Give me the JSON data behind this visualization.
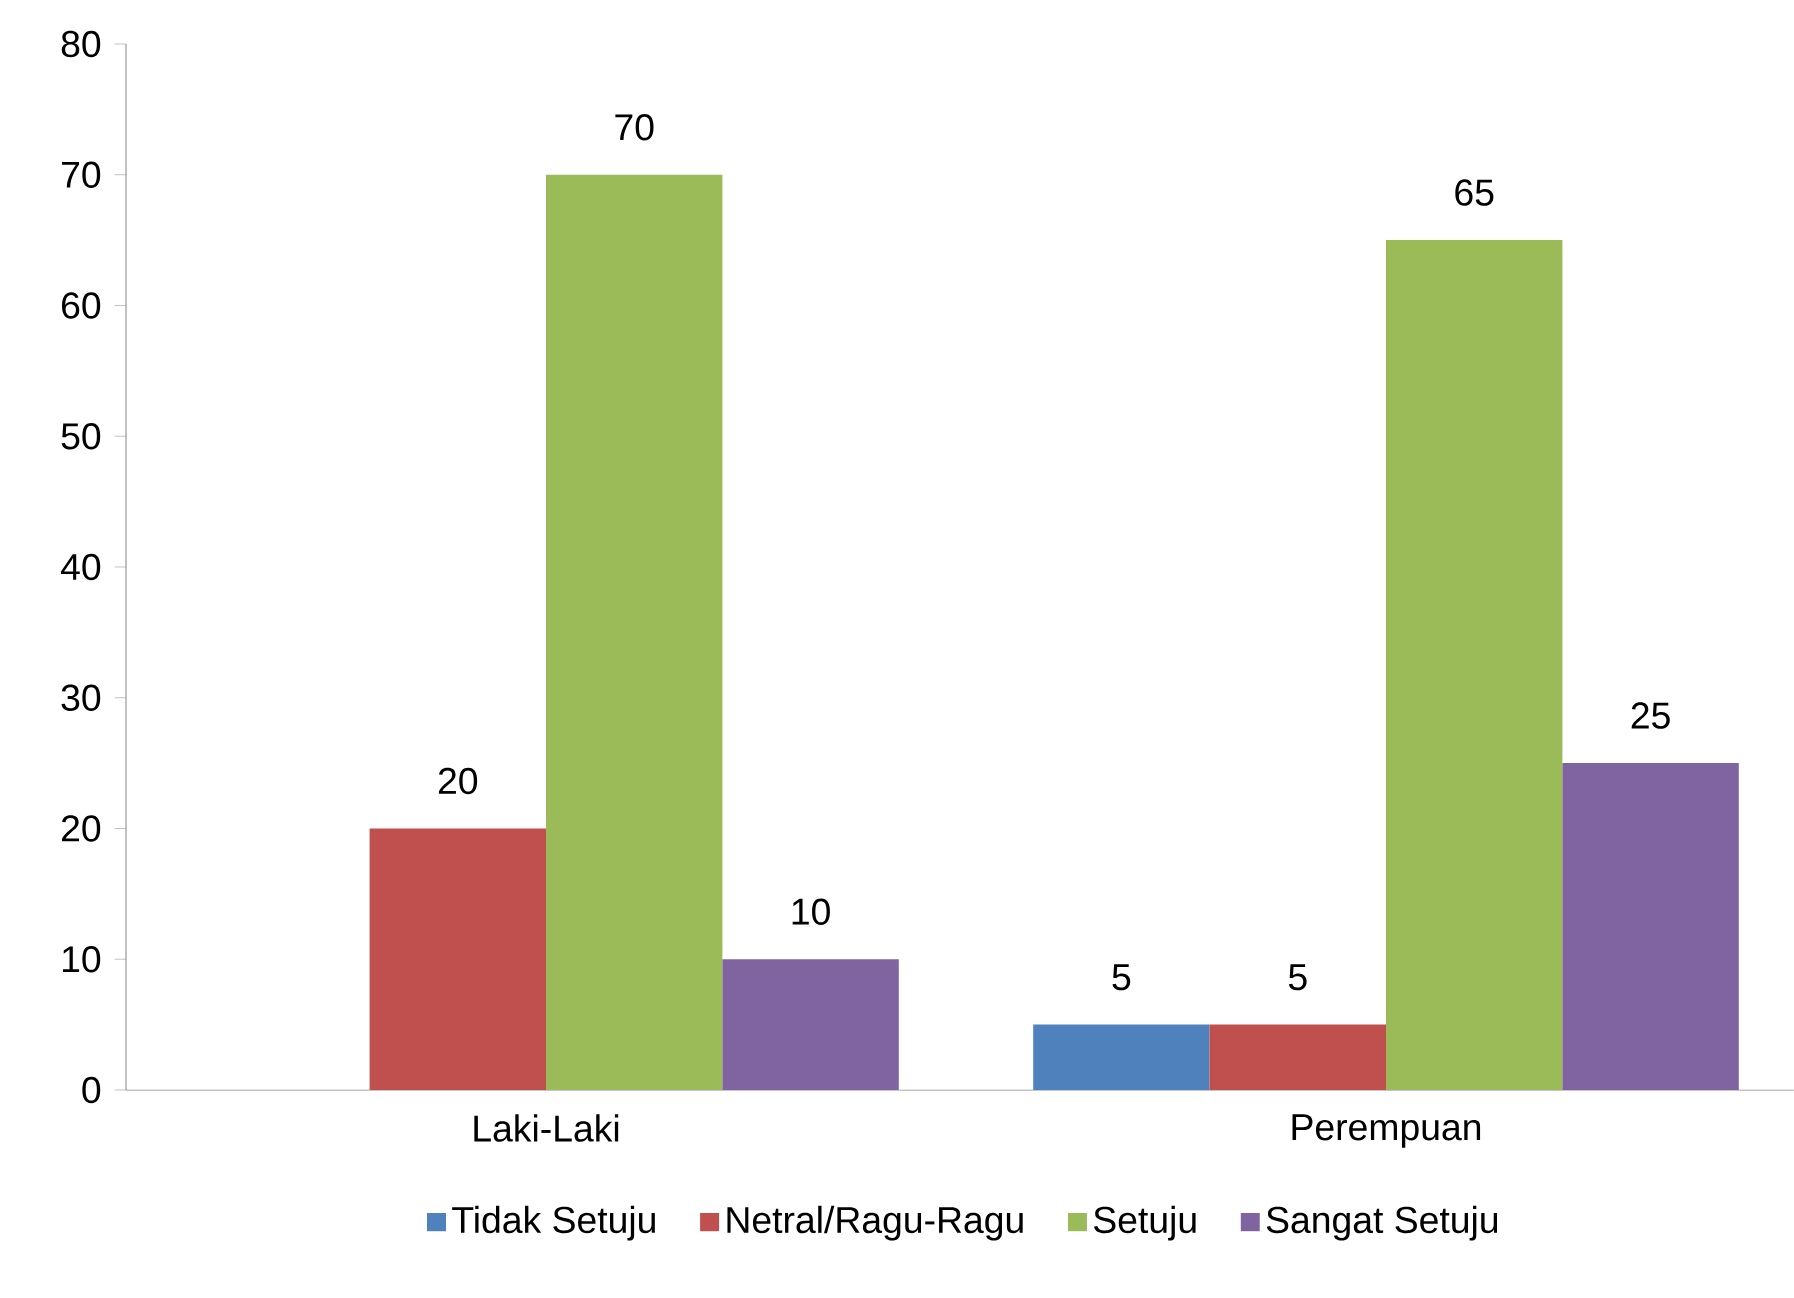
{
  "chart_data": {
    "type": "bar",
    "categories": [
      "Laki-Laki",
      "Perempuan"
    ],
    "series": [
      {
        "name": "Tidak Setuju",
        "color": "#4f81bd",
        "values": [
          null,
          5
        ]
      },
      {
        "name": "Netral/Ragu-Ragu",
        "color": "#c0504d",
        "values": [
          20,
          5
        ]
      },
      {
        "name": "Setuju",
        "color": "#9bbb59",
        "values": [
          70,
          65
        ]
      },
      {
        "name": "Sangat Setuju",
        "color": "#8064a2",
        "values": [
          10,
          25
        ]
      }
    ],
    "ylim": [
      0,
      80
    ],
    "yticks": [
      0,
      10,
      20,
      30,
      40,
      50,
      60,
      70,
      80
    ],
    "data_labels": true,
    "legend": "bottom",
    "grid": false
  }
}
